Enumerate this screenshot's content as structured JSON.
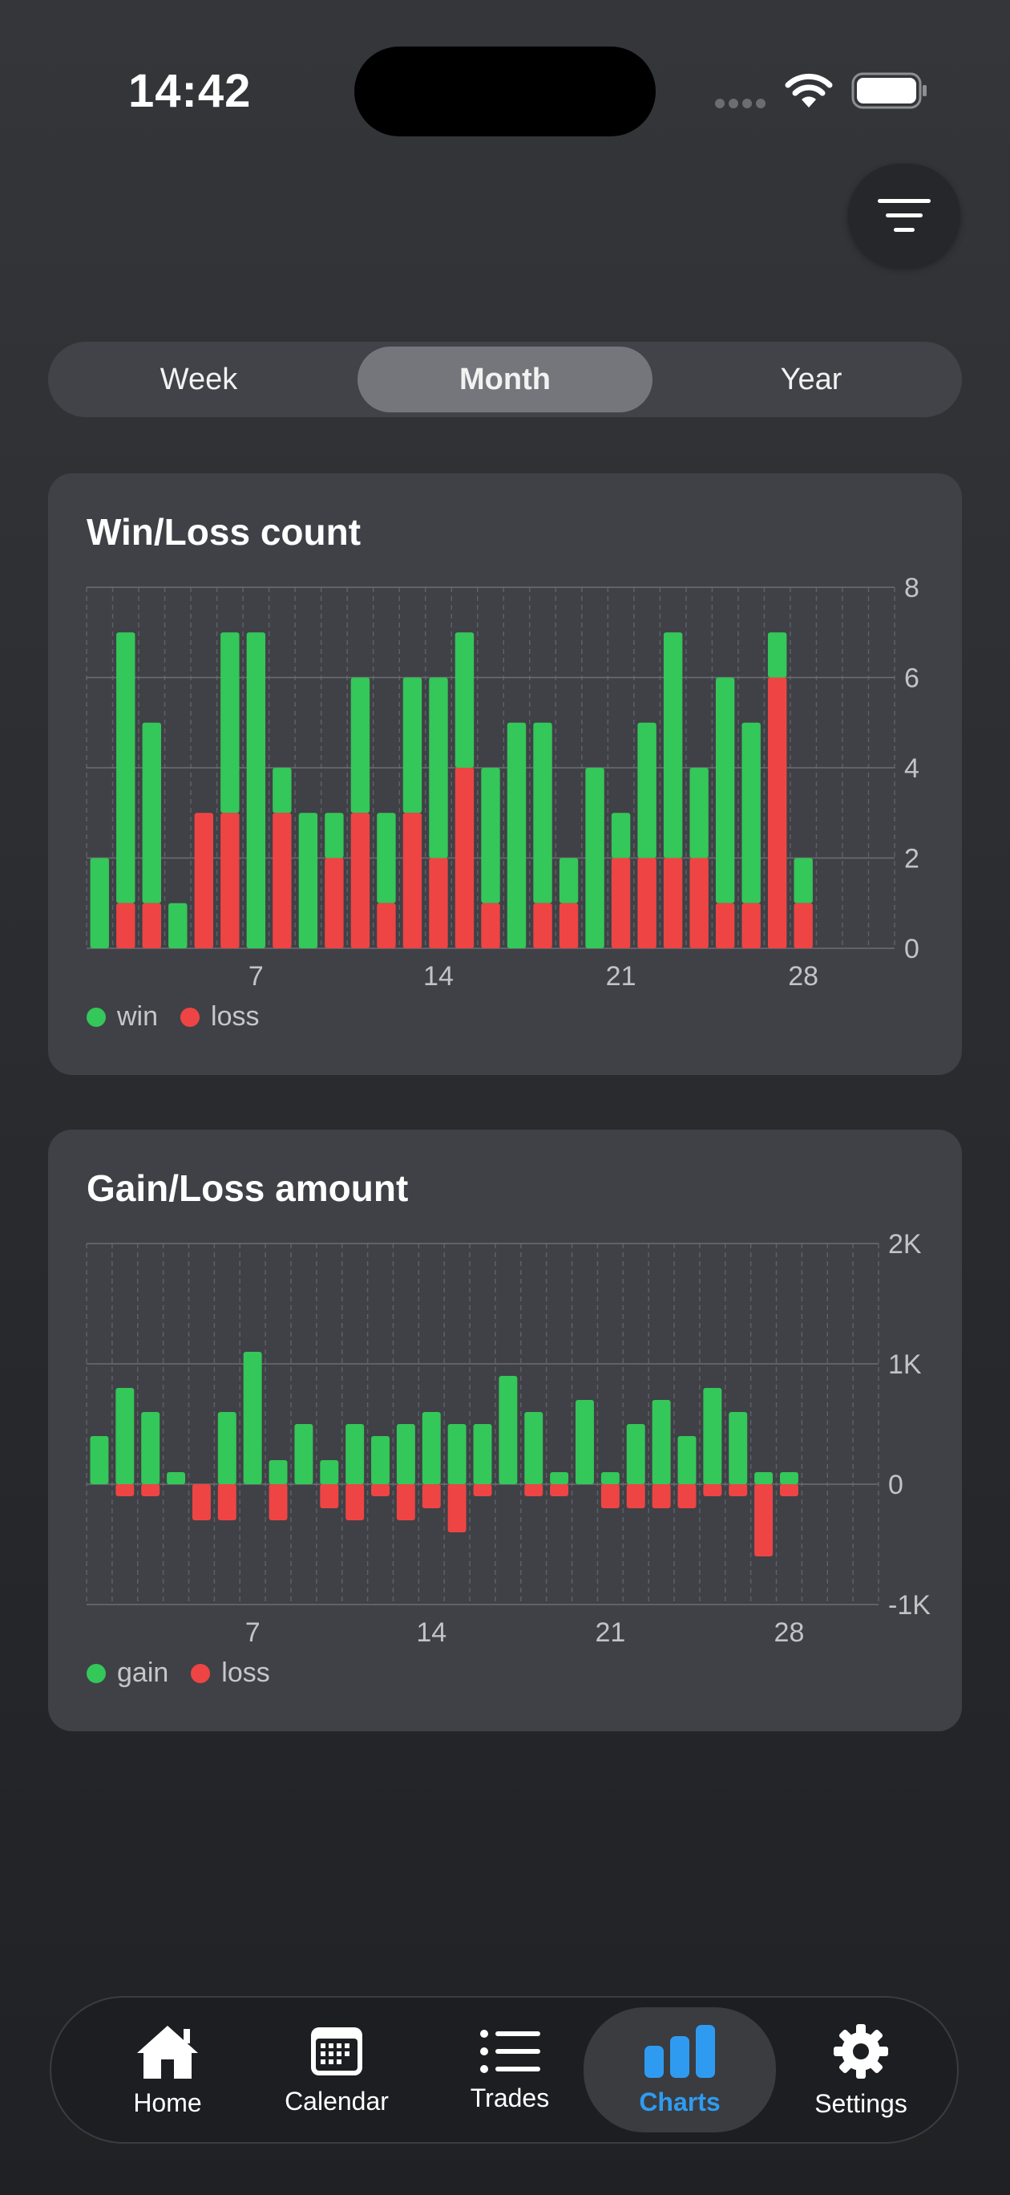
{
  "status": {
    "time": "14:42"
  },
  "segmented": {
    "options": [
      "Week",
      "Month",
      "Year"
    ],
    "selected": "Month"
  },
  "charts": {
    "winloss": {
      "title": "Win/Loss count",
      "legend": [
        {
          "label": "win",
          "color": "#34c759"
        },
        {
          "label": "loss",
          "color": "#ef4444"
        }
      ]
    },
    "gainloss": {
      "title": "Gain/Loss amount",
      "legend": [
        {
          "label": "gain",
          "color": "#34c759"
        },
        {
          "label": "loss",
          "color": "#ef4444"
        }
      ]
    }
  },
  "chart_data": [
    {
      "type": "bar",
      "stacked": true,
      "title": "Win/Loss count",
      "x": [
        1,
        2,
        3,
        4,
        5,
        6,
        7,
        8,
        9,
        10,
        11,
        12,
        13,
        14,
        15,
        16,
        17,
        18,
        19,
        20,
        21,
        22,
        23,
        24,
        25,
        26,
        27,
        28,
        29,
        30,
        31
      ],
      "x_ticks": [
        "7",
        "14",
        "21",
        "28"
      ],
      "y_ticks": [
        "0",
        "2",
        "4",
        "6",
        "8"
      ],
      "ylim": [
        0,
        8
      ],
      "y_axis_side": "right",
      "series": [
        {
          "name": "loss",
          "color": "#ef4444",
          "values": [
            0,
            1,
            1,
            0,
            3,
            3,
            0,
            3,
            0,
            2,
            3,
            1,
            3,
            2,
            4,
            1,
            0,
            1,
            1,
            0,
            2,
            2,
            2,
            2,
            1,
            1,
            6,
            1,
            0,
            0,
            0
          ]
        },
        {
          "name": "win",
          "color": "#34c759",
          "values": [
            2,
            6,
            4,
            1,
            0,
            4,
            7,
            1,
            3,
            1,
            3,
            2,
            3,
            4,
            3,
            3,
            5,
            4,
            1,
            4,
            1,
            3,
            5,
            2,
            5,
            4,
            1,
            1,
            0,
            0,
            0
          ]
        }
      ],
      "legend": "bottom-left",
      "grid": true
    },
    {
      "type": "bar",
      "title": "Gain/Loss amount",
      "x": [
        1,
        2,
        3,
        4,
        5,
        6,
        7,
        8,
        9,
        10,
        11,
        12,
        13,
        14,
        15,
        16,
        17,
        18,
        19,
        20,
        21,
        22,
        23,
        24,
        25,
        26,
        27,
        28,
        29,
        30,
        31
      ],
      "x_ticks": [
        "7",
        "14",
        "21",
        "28"
      ],
      "y_ticks": [
        "-1K",
        "0",
        "1K",
        "2K"
      ],
      "ylim": [
        -1000,
        2000
      ],
      "y_axis_side": "right",
      "series": [
        {
          "name": "gain",
          "color": "#34c759",
          "values": [
            400,
            800,
            600,
            100,
            0,
            600,
            1100,
            200,
            500,
            200,
            500,
            400,
            500,
            600,
            500,
            500,
            900,
            600,
            100,
            700,
            100,
            500,
            700,
            400,
            800,
            600,
            100,
            100,
            0,
            0,
            0
          ]
        },
        {
          "name": "loss",
          "color": "#ef4444",
          "values": [
            0,
            -100,
            -100,
            0,
            -300,
            -300,
            0,
            -300,
            0,
            -200,
            -300,
            -100,
            -300,
            -200,
            -400,
            -100,
            0,
            -100,
            -100,
            0,
            -200,
            -200,
            -200,
            -200,
            -100,
            -100,
            -600,
            -100,
            0,
            0,
            0
          ]
        }
      ],
      "legend": "bottom-left",
      "grid": true
    }
  ],
  "tabbar": {
    "items": [
      {
        "label": "Home",
        "icon": "house-icon"
      },
      {
        "label": "Calendar",
        "icon": "calendar-icon"
      },
      {
        "label": "Trades",
        "icon": "list-icon"
      },
      {
        "label": "Charts",
        "icon": "bar-chart-icon"
      },
      {
        "label": "Settings",
        "icon": "gear-icon"
      }
    ],
    "active": "Charts",
    "active_color": "#2f9bf0"
  }
}
